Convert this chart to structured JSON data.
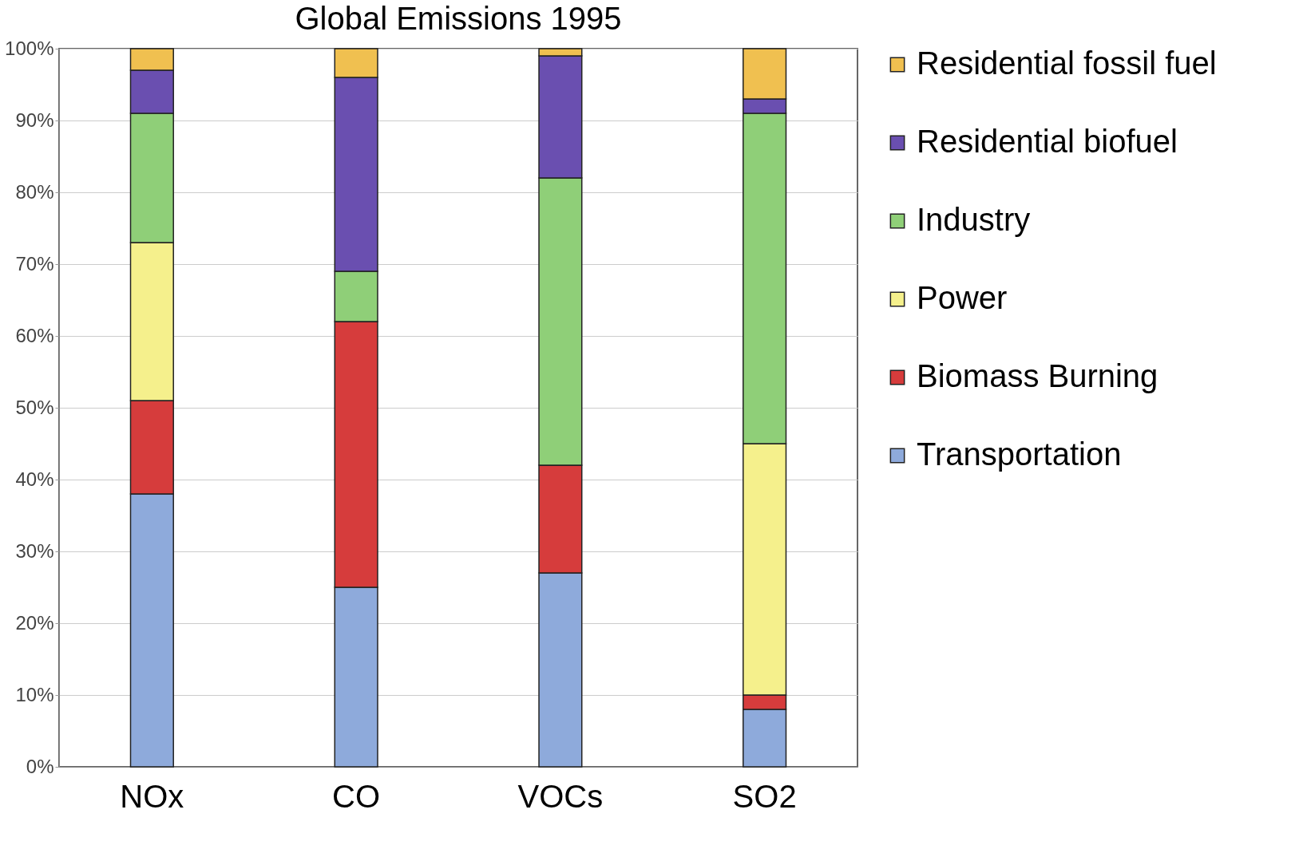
{
  "chart_data": {
    "type": "bar",
    "title": "Global Emissions 1995",
    "stacked": true,
    "categories": [
      "NOx",
      "CO",
      "VOCs",
      "SO2"
    ],
    "series": [
      {
        "name": "Transportation",
        "color": "#8eaadb",
        "values": [
          38,
          25,
          27,
          8
        ]
      },
      {
        "name": "Biomass Burning",
        "color": "#d63c3c",
        "values": [
          13,
          37,
          15,
          2
        ]
      },
      {
        "name": "Power",
        "color": "#f5f08c",
        "values": [
          22,
          0,
          0,
          35
        ]
      },
      {
        "name": "Industry",
        "color": "#8fcf78",
        "values": [
          18,
          7,
          40,
          46
        ]
      },
      {
        "name": "Residential biofuel",
        "color": "#6a4fb0",
        "values": [
          6,
          27,
          17,
          2
        ]
      },
      {
        "name": "Residential fossil fuel",
        "color": "#f0c050",
        "values": [
          3,
          4,
          1,
          7
        ]
      }
    ],
    "ylim": [
      0,
      100
    ],
    "yticks": [
      {
        "value": 0,
        "label": "0%"
      },
      {
        "value": 10,
        "label": "10%"
      },
      {
        "value": 20,
        "label": "20%"
      },
      {
        "value": 30,
        "label": "30%"
      },
      {
        "value": 40,
        "label": "40%"
      },
      {
        "value": 50,
        "label": "50%"
      },
      {
        "value": 60,
        "label": "60%"
      },
      {
        "value": 70,
        "label": "70%"
      },
      {
        "value": 80,
        "label": "80%"
      },
      {
        "value": 90,
        "label": "90%"
      },
      {
        "value": 100,
        "label": "100%"
      }
    ],
    "grid": "y",
    "legend": "right"
  }
}
